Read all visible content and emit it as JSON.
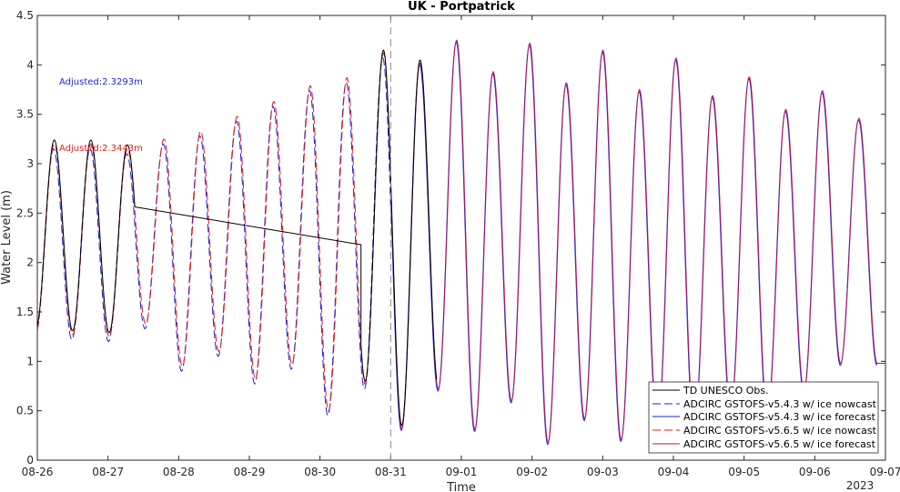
{
  "chart_data": {
    "type": "line",
    "title": "UK - Portpatrick",
    "xlabel": "Time",
    "ylabel": "Water Level (m)",
    "x_tick_labels": [
      "08-26",
      "08-27",
      "08-28",
      "08-29",
      "08-30",
      "08-31",
      "09-01",
      "09-02",
      "09-03",
      "09-04",
      "09-05",
      "09-06",
      "09-07"
    ],
    "x_year_label": "2023",
    "x_range_days": [
      0,
      12
    ],
    "ylim": [
      0,
      4.5
    ],
    "y_ticks": [
      0,
      0.5,
      1,
      1.5,
      2,
      2.5,
      3,
      3.5,
      4,
      4.5
    ],
    "grid": false,
    "legend_position": "bottom-right",
    "forecast_start_day": 5,
    "annotations": [
      {
        "text": "Adjusted:2.3293m",
        "color": "#1f1fd6"
      },
      {
        "text": "Adjusted:2.3443m",
        "color": "#d61f1f"
      }
    ],
    "tide": {
      "period_hours": 12.42,
      "first_high_day": 0.24,
      "highs": [
        3.2,
        3.2,
        3.15,
        3.25,
        3.33,
        3.48,
        3.63,
        3.79,
        3.87,
        4.12,
        4.02,
        4.25,
        3.93,
        4.22,
        3.82,
        4.15,
        3.75,
        4.07,
        3.69,
        3.88,
        3.55,
        3.74,
        3.46
      ],
      "lows": [
        1.3,
        1.27,
        1.25,
        1.38,
        0.95,
        1.1,
        0.82,
        0.97,
        0.5,
        0.77,
        0.32,
        0.72,
        0.31,
        0.6,
        0.18,
        0.42,
        0.21,
        0.32,
        0.3,
        0.5,
        0.45,
        0.7,
        0.98
      ]
    },
    "series": [
      {
        "name": "TD UNESCO Obs.",
        "color": "#000000",
        "style": "solid",
        "segments": [
          [
            0,
            1.34
          ],
          [
            2.5,
            3.15
          ],
          [
            4.58,
            2.18
          ],
          [
            5.2,
            0.9
          ]
        ]
      },
      {
        "name": "ADCIRC GSTOFS-v5.4.3 w/ ice nowcast",
        "color": "#1f1fd6",
        "style": "dashed",
        "range": [
          0,
          5
        ]
      },
      {
        "name": "ADCIRC GSTOFS-v5.4.3 w/ ice forecast",
        "color": "#1f1fd6",
        "style": "solid",
        "range": [
          5,
          12
        ]
      },
      {
        "name": "ADCIRC GSTOFS-v5.6.5 w/ ice nowcast",
        "color": "#d61f1f",
        "style": "dashed",
        "range": [
          0,
          5
        ]
      },
      {
        "name": "ADCIRC GSTOFS-v5.6.5 w/ ice forecast",
        "color": "#b01a5a",
        "style": "solid",
        "range": [
          5,
          12
        ]
      }
    ]
  }
}
